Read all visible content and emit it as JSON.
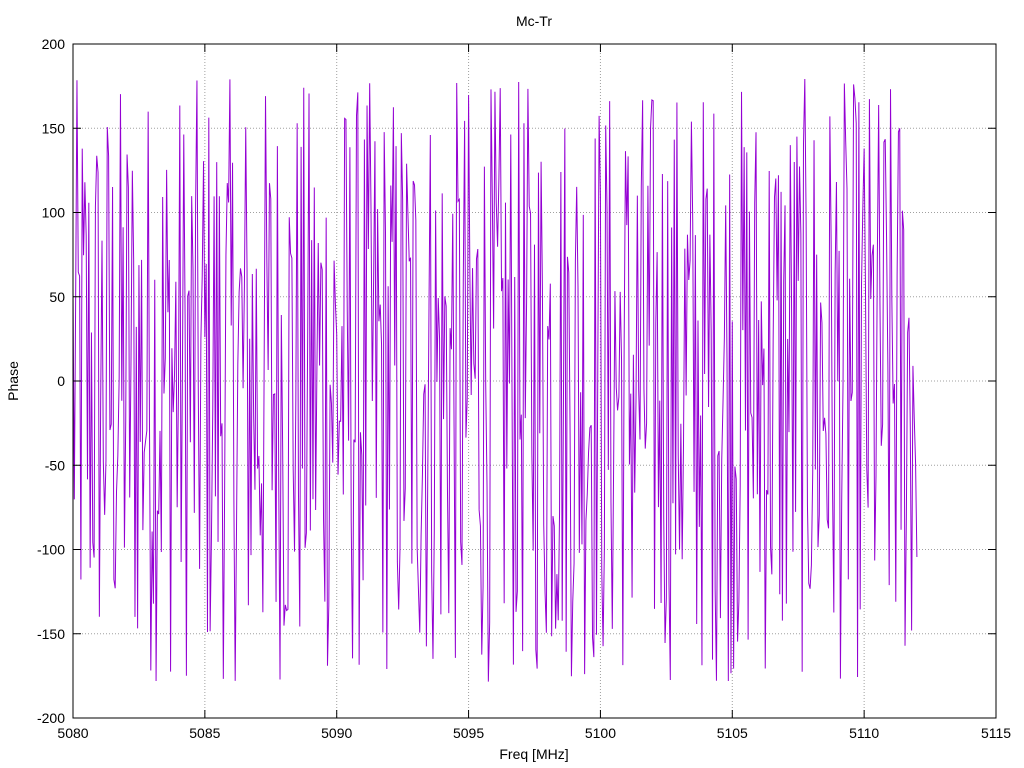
{
  "chart_data": {
    "type": "line",
    "title": "Mc-Tr",
    "xlabel": "Freq [MHz]",
    "ylabel": "Phase",
    "xlim": [
      5080,
      5115
    ],
    "ylim": [
      -200,
      200
    ],
    "xticks": [
      "5080",
      "5085",
      "5090",
      "5095",
      "5100",
      "5105",
      "5110",
      "5115"
    ],
    "yticks": [
      "200",
      "150",
      "100",
      "50",
      "0",
      "-50",
      "-100",
      "-150",
      "-200"
    ],
    "grid": true,
    "legend": "none",
    "series": [
      {
        "color": "#9400d3",
        "x_range": [
          5080,
          5112
        ],
        "y_range": [
          -180,
          180
        ],
        "sample_spacing": 0.05,
        "points_approx": 640,
        "description": "rapidly oscillating phase between about -180 and 180"
      }
    ]
  },
  "colors": {
    "series": "#9400d3",
    "grid": "#a0a0a0",
    "axis": "#000000"
  }
}
